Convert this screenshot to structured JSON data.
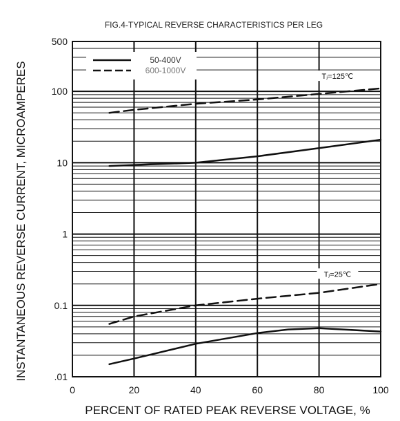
{
  "chart_data": {
    "type": "line",
    "title": "FIG.4-TYPICAL REVERSE CHARACTERISTICS PER LEG",
    "xlabel": "PERCENT OF RATED PEAK REVERSE VOLTAGE, %",
    "ylabel": "INSTANTANEOUS REVERSE CURRENT, MICROAMPERES",
    "xlim": [
      0,
      100
    ],
    "ylim": [
      0.01,
      500
    ],
    "yscale": "log",
    "grid": true,
    "legend_position": "top-left",
    "x_ticks": [
      "0",
      "20",
      "40",
      "60",
      "80",
      "100"
    ],
    "y_ticks": [
      "500",
      "100",
      "10",
      "1",
      "0.1",
      ".01"
    ],
    "legend": [
      {
        "label": "50-400V",
        "style": "solid"
      },
      {
        "label": "600-1000V",
        "style": "dashed"
      }
    ],
    "annotations": [
      {
        "text": "Tⱼ=125℃",
        "x": 86,
        "y": 160
      },
      {
        "text": "Tⱼ=25℃",
        "x": 86,
        "y": 0.27
      }
    ],
    "series": [
      {
        "name": "50-400V",
        "style": "solid",
        "x": [
          12,
          20,
          40,
          60,
          80,
          100
        ],
        "y": [
          9,
          9.3,
          10,
          12.3,
          16,
          21
        ]
      },
      {
        "name": "600-1000V",
        "style": "dashed",
        "x": [
          12,
          20,
          40,
          60,
          80,
          100
        ],
        "y": [
          50,
          55,
          67,
          77,
          92,
          110
        ]
      },
      {
        "name": "50-400V",
        "style": "solid",
        "x": [
          12,
          20,
          40,
          60,
          70,
          80,
          100
        ],
        "y": [
          0.015,
          0.018,
          0.029,
          0.041,
          0.046,
          0.048,
          0.043
        ]
      },
      {
        "name": "600-1000V",
        "style": "dashed",
        "x": [
          12,
          20,
          40,
          60,
          80,
          100
        ],
        "y": [
          0.055,
          0.07,
          0.1,
          0.124,
          0.15,
          0.2
        ]
      }
    ],
    "colors": {
      "line": "#111111",
      "grid": "#111111",
      "legend_bg": "#ffffff"
    }
  }
}
